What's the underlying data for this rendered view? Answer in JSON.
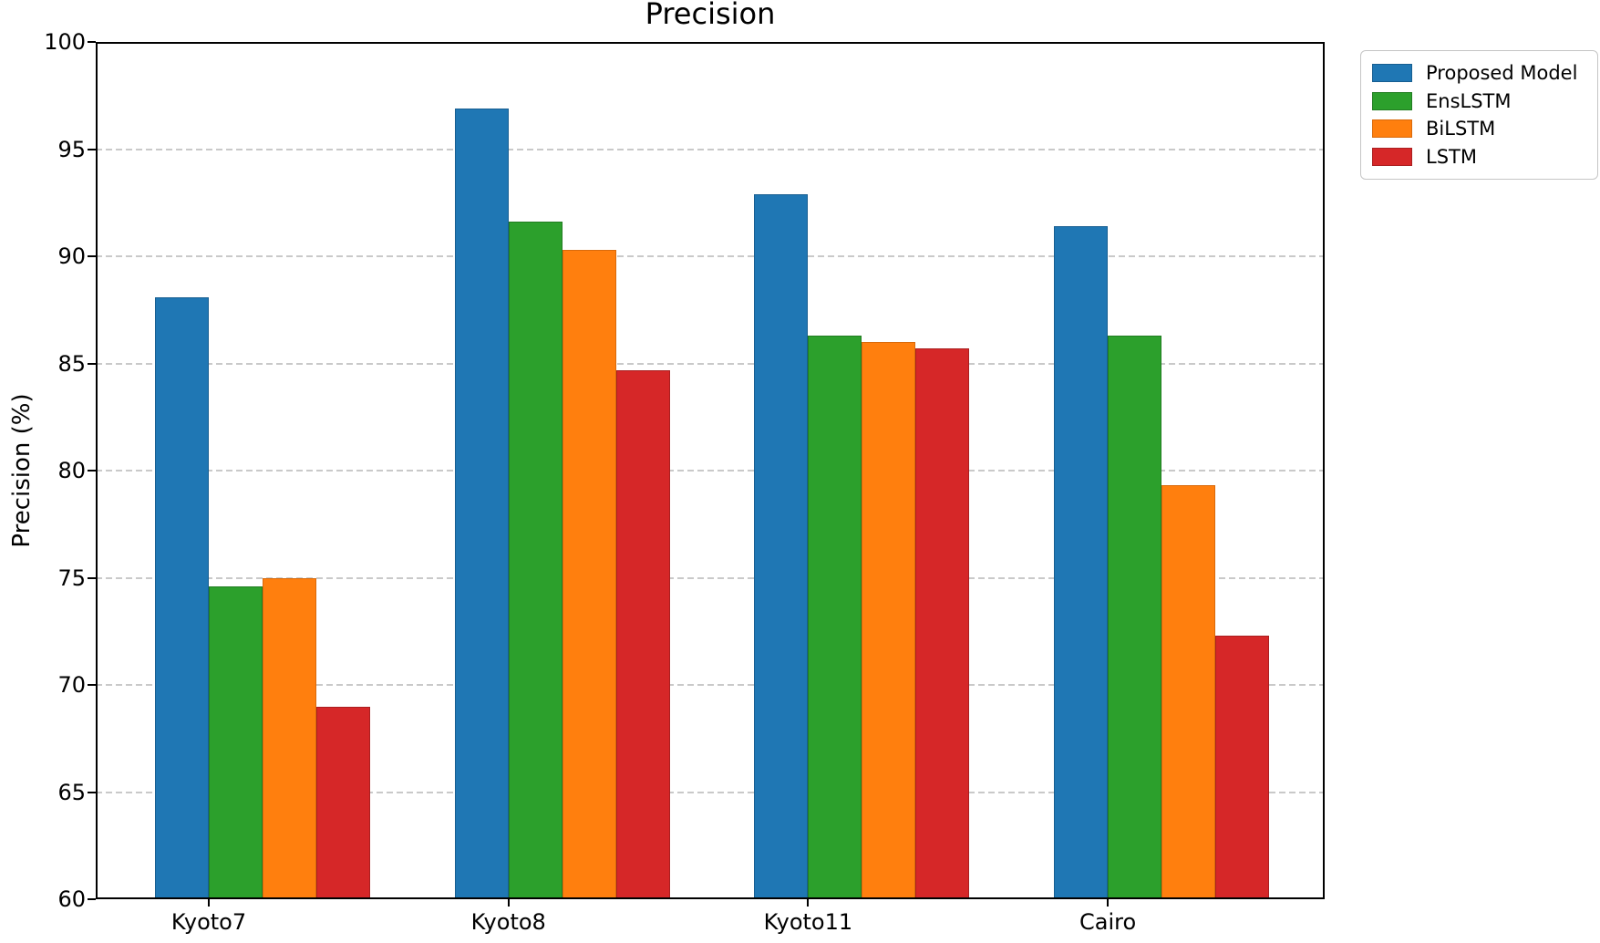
{
  "figure": {
    "background": "#ffffff",
    "text_color": "#000000",
    "grid_color": "#c9c9c9",
    "spine_color": "#000000",
    "legend_border_color": "#c5c5c5"
  },
  "chart_data": {
    "type": "bar",
    "title": "Precision",
    "xlabel": "",
    "ylabel": "Precision (%)",
    "categories": [
      "Kyoto7",
      "Kyoto8",
      "Kyoto11",
      "Cairo"
    ],
    "series": [
      {
        "name": "Proposed Model",
        "color": "#1f77b4",
        "edge_color": "#175e91",
        "values": [
          88.1,
          96.9,
          92.9,
          91.4
        ]
      },
      {
        "name": "EnsLSTM",
        "color": "#2ca02c",
        "edge_color": "#217c21",
        "values": [
          74.6,
          91.6,
          86.3,
          86.3
        ]
      },
      {
        "name": "BiLSTM",
        "color": "#ff7f0e",
        "edge_color": "#d96a0b",
        "values": [
          75.0,
          90.3,
          86.0,
          79.3
        ]
      },
      {
        "name": "LSTM",
        "color": "#d62728",
        "edge_color": "#aa1f20",
        "values": [
          69.0,
          84.7,
          85.7,
          72.3
        ]
      }
    ],
    "ylim": [
      60,
      100
    ],
    "y_ticks": [
      60,
      65,
      70,
      75,
      80,
      85,
      90,
      95,
      100
    ],
    "grid": "dashed horizontal, behind bars",
    "legend_position": "outside top-right"
  }
}
